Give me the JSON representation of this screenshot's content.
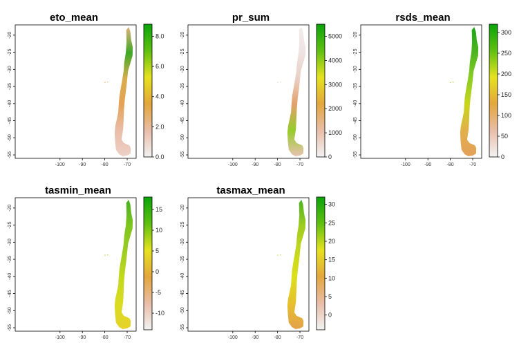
{
  "figure": {
    "colormap": [
      "#f2f2f2",
      "#e9bda8",
      "#e3a63c",
      "#e6e21f",
      "#5fc010",
      "#0aa40a"
    ],
    "panels": [
      {
        "title": "eto_mean",
        "x_ticks": [
          -100,
          -90,
          -80,
          -70
        ],
        "y_ticks": [
          -20,
          -25,
          -30,
          -35,
          -40,
          -45,
          -50,
          -55
        ],
        "x_range": [
          -120,
          -66
        ],
        "y_range": [
          -56,
          -17
        ],
        "colorbar": {
          "min": 0,
          "max": 8.8,
          "ticks": [
            "0.0",
            "2.0",
            "4.0",
            "6.0",
            "8.0"
          ],
          "tick_values": [
            0,
            2,
            4,
            6,
            8
          ]
        },
        "fill": [
          "#e3b07a",
          "#3ea826",
          "#d8ad4c",
          "#e5a257",
          "#e9bda8",
          "#edd0c6"
        ]
      },
      {
        "title": "pr_sum",
        "x_ticks": [
          -100,
          -90,
          -80,
          -70
        ],
        "y_ticks": [
          -20,
          -25,
          -30,
          -35,
          -40,
          -45,
          -50,
          -55
        ],
        "x_range": [
          -120,
          -66
        ],
        "y_range": [
          -56,
          -17
        ],
        "colorbar": {
          "min": 0,
          "max": 5500,
          "ticks": [
            "0",
            "1000",
            "2000",
            "3000",
            "4000",
            "5000"
          ],
          "tick_values": [
            0,
            1000,
            2000,
            3000,
            4000,
            5000
          ]
        },
        "fill": [
          "#f1ecec",
          "#eee3e3",
          "#ead0c4",
          "#e2a06a",
          "#96cc2a",
          "#e8c2b0"
        ]
      },
      {
        "title": "rsds_mean",
        "x_ticks": [
          -100,
          -90,
          -80,
          -70
        ],
        "y_ticks": [
          -20,
          -25,
          -30,
          -35,
          -40,
          -45,
          -50,
          -55
        ],
        "x_range": [
          -120,
          -66
        ],
        "y_range": [
          -56,
          -17
        ],
        "colorbar": {
          "min": 0,
          "max": 320,
          "ticks": [
            "0",
            "50",
            "100",
            "150",
            "200",
            "250",
            "300"
          ],
          "tick_values": [
            0,
            50,
            100,
            150,
            200,
            250,
            300
          ]
        },
        "fill": [
          "#1da414",
          "#4db520",
          "#8ccd22",
          "#c9d51c",
          "#e1b04a",
          "#e3a05a"
        ]
      },
      {
        "title": "tasmin_mean",
        "x_ticks": [
          -100,
          -90,
          -80,
          -70
        ],
        "y_ticks": [
          -20,
          -25,
          -30,
          -35,
          -40,
          -45,
          -50,
          -55
        ],
        "x_range": [
          -120,
          -66
        ],
        "y_range": [
          -56,
          -17
        ],
        "colorbar": {
          "min": -14,
          "max": 18,
          "ticks": [
            "-10",
            "-5",
            "0",
            "5",
            "10",
            "15"
          ],
          "tick_values": [
            -10,
            -5,
            0,
            5,
            10,
            15
          ]
        },
        "fill": [
          "#46b01e",
          "#7fc520",
          "#9ccd22",
          "#c4d81e",
          "#d9dc20",
          "#e6d22a"
        ]
      },
      {
        "title": "tasmax_mean",
        "x_ticks": [
          -100,
          -90,
          -80,
          -70
        ],
        "y_ticks": [
          -20,
          -25,
          -30,
          -35,
          -40,
          -45,
          -50,
          -55
        ],
        "x_range": [
          -120,
          -66
        ],
        "y_range": [
          -56,
          -17
        ],
        "colorbar": {
          "min": -4,
          "max": 32,
          "ticks": [
            "0",
            "5",
            "10",
            "15",
            "20",
            "25",
            "30"
          ],
          "tick_values": [
            0,
            5,
            10,
            15,
            20,
            25,
            30
          ]
        },
        "fill": [
          "#4cb41f",
          "#9dcc20",
          "#c6d81c",
          "#dcdf1e",
          "#e6c02e",
          "#e3a24a"
        ]
      }
    ]
  }
}
